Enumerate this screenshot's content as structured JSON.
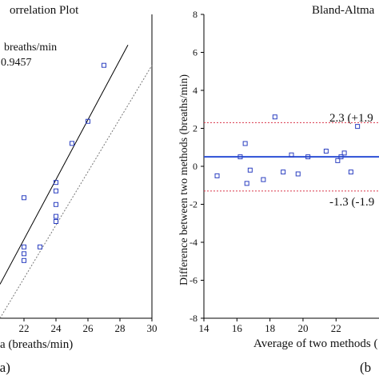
{
  "panels": {
    "left": {
      "title_visible": "orrelation Plot",
      "xlabel_visible": "a (breaths/min)",
      "panel_label": "(a)",
      "legend_line1": "breaths/min",
      "legend_line2": "0.9457"
    },
    "right": {
      "title_visible": "Bland-Altma",
      "xlabel_visible": "Average of two methods (",
      "ylabel": "Difference between two methods (breaths/min)",
      "panel_label": "(b",
      "upper_loa_label": "2.3 (+1.9",
      "lower_loa_label": "-1.3 (-1.9"
    }
  },
  "colors": {
    "marker": "#2b3fc0",
    "mean_line": "#2b4fd6",
    "loa_line": "#d9364a",
    "fit_line": "#000000",
    "identity_line": "#777777"
  },
  "chart_data": [
    {
      "type": "scatter",
      "title": "orrelation Plot",
      "xlabel": "a (breaths/min)",
      "x_ticks": [
        22,
        24,
        26,
        28,
        30
      ],
      "xlim": [
        20.5,
        30
      ],
      "ylim": [
        13.6,
        31.5
      ],
      "points": [
        {
          "x": 22.0,
          "y": 20.7
        },
        {
          "x": 22.0,
          "y": 17.8
        },
        {
          "x": 22.0,
          "y": 17.4
        },
        {
          "x": 22.0,
          "y": 17.0
        },
        {
          "x": 23.0,
          "y": 17.8
        },
        {
          "x": 24.0,
          "y": 21.6
        },
        {
          "x": 24.0,
          "y": 21.1
        },
        {
          "x": 24.0,
          "y": 20.3
        },
        {
          "x": 24.0,
          "y": 19.6
        },
        {
          "x": 24.0,
          "y": 19.3
        },
        {
          "x": 25.0,
          "y": 23.9
        },
        {
          "x": 26.0,
          "y": 25.2
        },
        {
          "x": 27.0,
          "y": 28.5
        }
      ],
      "lines": [
        {
          "kind": "fit",
          "style": "solid",
          "x": [
            20.5,
            28.5
          ],
          "y": [
            15.6,
            29.7
          ]
        },
        {
          "kind": "identity",
          "style": "dotted",
          "x": [
            20.5,
            30
          ],
          "y": [
            13.6,
            28.5
          ]
        }
      ],
      "grid": false
    },
    {
      "type": "scatter",
      "title": "Bland-Altma",
      "xlabel": "Average of two methods (",
      "ylabel": "Difference between two methods (breaths/min)",
      "x_ticks": [
        14,
        16,
        18,
        20,
        22
      ],
      "y_ticks": [
        -8,
        -6,
        -4,
        -2,
        0,
        2,
        4,
        6,
        8
      ],
      "xlim": [
        14,
        24.6
      ],
      "ylim": [
        -8,
        8
      ],
      "points": [
        {
          "x": 14.8,
          "y": -0.5
        },
        {
          "x": 16.2,
          "y": 0.5
        },
        {
          "x": 16.5,
          "y": 1.2
        },
        {
          "x": 16.8,
          "y": -0.2
        },
        {
          "x": 16.6,
          "y": -0.9
        },
        {
          "x": 17.6,
          "y": -0.7
        },
        {
          "x": 18.3,
          "y": 2.6
        },
        {
          "x": 18.8,
          "y": -0.3
        },
        {
          "x": 19.3,
          "y": 0.6
        },
        {
          "x": 19.7,
          "y": -0.4
        },
        {
          "x": 20.3,
          "y": 0.5
        },
        {
          "x": 21.4,
          "y": 0.8
        },
        {
          "x": 22.1,
          "y": 0.3
        },
        {
          "x": 22.3,
          "y": 0.5
        },
        {
          "x": 22.5,
          "y": 0.7
        },
        {
          "x": 22.9,
          "y": -0.3
        },
        {
          "x": 23.3,
          "y": 2.1
        }
      ],
      "hlines": [
        {
          "kind": "mean",
          "y": 0.5
        },
        {
          "kind": "upper_loa",
          "y": 2.3
        },
        {
          "kind": "lower_loa",
          "y": -1.3
        }
      ],
      "grid": false
    }
  ]
}
